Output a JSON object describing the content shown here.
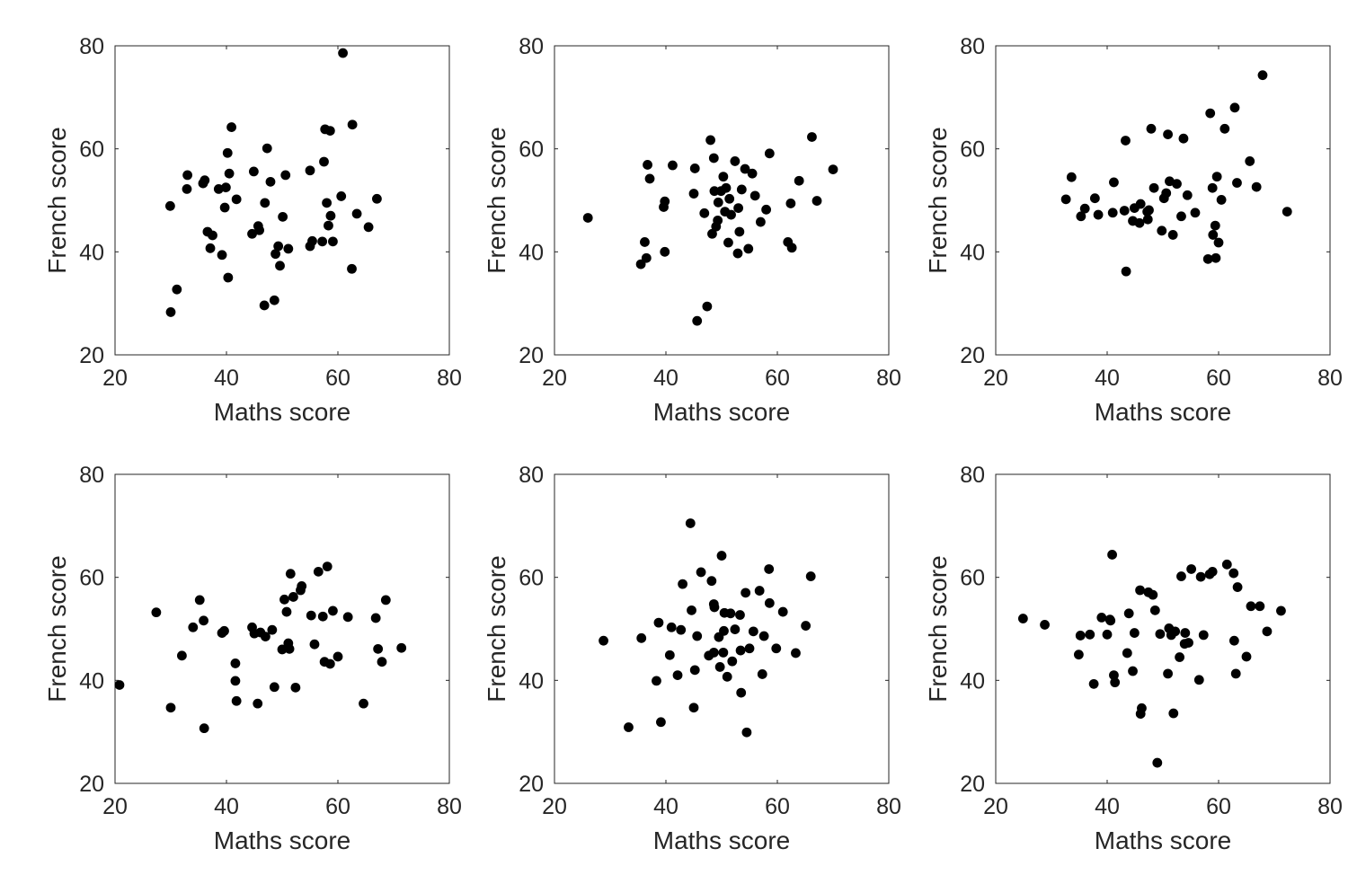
{
  "chart_data": [
    {
      "type": "scatter",
      "xlabel": "Maths score",
      "ylabel": "French score",
      "xlim": [
        20,
        80
      ],
      "ylim": [
        20,
        80
      ],
      "xticks": [
        20,
        40,
        60,
        80
      ],
      "yticks": [
        20,
        40,
        60,
        80
      ],
      "x": [
        29.9,
        30.0,
        31.1,
        32.9,
        33.0,
        35.8,
        36.1,
        36.6,
        37.1,
        37.5,
        38.6,
        39.2,
        39.7,
        39.9,
        40.2,
        40.3,
        40.5,
        40.9,
        41.8,
        44.6,
        44.9,
        45.7,
        45.9,
        46.8,
        46.9,
        47.3,
        47.9,
        48.6,
        48.8,
        49.3,
        49.6,
        50.1,
        50.6,
        51.1,
        55.0,
        55.0,
        55.4,
        57.2,
        57.5,
        57.7,
        58.0,
        58.3,
        58.6,
        58.7,
        59.1,
        60.6,
        60.9,
        62.5,
        62.6,
        63.4,
        65.5,
        67.0
      ],
      "y": [
        48.9,
        28.3,
        32.7,
        52.2,
        54.9,
        53.3,
        53.9,
        43.9,
        40.7,
        43.2,
        52.2,
        39.4,
        48.6,
        52.5,
        59.2,
        35.0,
        55.2,
        64.2,
        50.2,
        43.5,
        55.6,
        45.0,
        44.2,
        29.6,
        49.5,
        60.1,
        53.6,
        30.6,
        39.6,
        41.1,
        37.3,
        46.8,
        54.9,
        40.6,
        41.1,
        55.8,
        42.1,
        42.0,
        57.5,
        63.8,
        49.5,
        45.1,
        63.5,
        47.0,
        42.0,
        50.8,
        78.6,
        36.7,
        64.7,
        47.4,
        44.8,
        50.3
      ]
    },
    {
      "type": "scatter",
      "xlabel": "Maths score",
      "ylabel": "French score",
      "xlim": [
        20,
        80
      ],
      "ylim": [
        20,
        80
      ],
      "xticks": [
        20,
        40,
        60,
        80
      ],
      "yticks": [
        20,
        40,
        60,
        80
      ],
      "x": [
        26.0,
        35.5,
        36.2,
        36.5,
        36.7,
        37.1,
        39.6,
        39.8,
        39.8,
        41.2,
        45.0,
        45.2,
        45.6,
        46.9,
        47.4,
        48.0,
        48.3,
        48.6,
        48.7,
        49.0,
        49.3,
        49.4,
        49.9,
        50.3,
        50.6,
        51.2,
        51.7,
        52.4,
        52.9,
        53.0,
        53.2,
        53.6,
        54.2,
        54.8,
        55.5,
        56.0,
        57.0,
        58.0,
        58.6,
        61.9,
        62.4,
        62.6,
        63.9,
        66.2,
        67.1,
        70.0,
        50.8,
        51.4
      ],
      "y": [
        46.6,
        37.6,
        41.9,
        38.8,
        56.9,
        54.2,
        48.7,
        49.8,
        40.0,
        56.8,
        51.3,
        56.2,
        26.6,
        47.5,
        29.4,
        61.7,
        43.5,
        58.2,
        51.8,
        44.9,
        46.1,
        49.6,
        51.8,
        54.6,
        47.8,
        41.8,
        47.2,
        57.6,
        39.7,
        48.5,
        43.9,
        52.1,
        56.1,
        40.6,
        55.2,
        50.9,
        45.8,
        48.2,
        59.1,
        41.9,
        49.4,
        40.8,
        53.8,
        62.3,
        49.9,
        56.0,
        52.4,
        50.3
      ]
    },
    {
      "type": "scatter",
      "xlabel": "Maths score",
      "ylabel": "French score",
      "xlim": [
        20,
        80
      ],
      "ylim": [
        20,
        80
      ],
      "xticks": [
        20,
        40,
        60,
        80
      ],
      "yticks": [
        20,
        40,
        60,
        80
      ],
      "x": [
        32.6,
        33.6,
        35.3,
        36.0,
        37.8,
        38.4,
        41.0,
        41.2,
        43.1,
        43.3,
        43.4,
        44.6,
        44.9,
        45.8,
        46.0,
        47.2,
        47.3,
        47.5,
        47.9,
        48.4,
        49.8,
        50.2,
        50.6,
        50.9,
        51.2,
        51.8,
        52.5,
        53.3,
        53.7,
        54.4,
        55.8,
        58.1,
        58.5,
        58.9,
        59.0,
        59.4,
        59.5,
        59.7,
        60.0,
        60.5,
        61.1,
        62.9,
        63.3,
        65.6,
        66.8,
        67.9,
        72.3
      ],
      "y": [
        50.2,
        54.5,
        46.9,
        48.4,
        50.4,
        47.2,
        47.6,
        53.5,
        48.0,
        61.6,
        36.2,
        46.0,
        48.5,
        45.6,
        49.3,
        47.8,
        46.3,
        48.1,
        63.9,
        52.4,
        44.1,
        50.4,
        51.4,
        62.8,
        53.7,
        43.3,
        53.2,
        46.9,
        62.0,
        51.0,
        47.6,
        38.6,
        66.9,
        52.4,
        43.3,
        45.1,
        38.8,
        54.6,
        41.8,
        50.1,
        63.9,
        68.0,
        53.4,
        57.6,
        52.6,
        74.3,
        47.8
      ]
    },
    {
      "type": "scatter",
      "xlabel": "Maths score",
      "ylabel": "French score",
      "xlim": [
        20,
        80
      ],
      "ylim": [
        20,
        80
      ],
      "xticks": [
        20,
        40,
        60,
        80
      ],
      "yticks": [
        20,
        40,
        60,
        80
      ],
      "x": [
        20.8,
        27.4,
        30.0,
        32.0,
        34.0,
        35.2,
        35.9,
        36.0,
        39.2,
        39.6,
        41.6,
        41.6,
        41.8,
        44.6,
        45.0,
        45.6,
        46.1,
        47.0,
        48.2,
        48.6,
        50.0,
        50.4,
        50.8,
        51.1,
        51.3,
        51.5,
        52.0,
        52.4,
        53.3,
        53.5,
        55.2,
        55.8,
        56.5,
        57.3,
        57.6,
        58.1,
        58.6,
        59.1,
        60.0,
        61.8,
        64.6,
        66.8,
        67.2,
        67.9,
        68.6,
        71.4
      ],
      "y": [
        39.1,
        53.2,
        34.7,
        44.8,
        50.3,
        55.6,
        51.6,
        30.7,
        49.2,
        49.6,
        43.3,
        39.9,
        36.0,
        50.3,
        49.1,
        35.5,
        49.3,
        48.5,
        49.8,
        38.7,
        46.0,
        55.7,
        53.3,
        47.2,
        46.1,
        60.7,
        56.2,
        38.6,
        57.5,
        58.3,
        52.6,
        47.0,
        61.1,
        52.4,
        43.6,
        62.1,
        43.2,
        53.5,
        44.6,
        52.3,
        35.5,
        52.1,
        46.1,
        43.6,
        55.6,
        46.3
      ]
    },
    {
      "type": "scatter",
      "xlabel": "Maths score",
      "ylabel": "French score",
      "xlim": [
        20,
        80
      ],
      "ylim": [
        20,
        80
      ],
      "xticks": [
        20,
        40,
        60,
        80
      ],
      "yticks": [
        20,
        40,
        60,
        80
      ],
      "x": [
        28.8,
        33.3,
        35.6,
        38.3,
        38.7,
        39.1,
        40.7,
        41.0,
        42.1,
        42.7,
        43.0,
        44.4,
        44.6,
        45.0,
        45.2,
        45.6,
        46.3,
        47.7,
        48.2,
        48.6,
        48.6,
        48.7,
        49.5,
        49.7,
        50.0,
        50.3,
        50.4,
        50.5,
        51.0,
        51.6,
        51.9,
        52.4,
        53.3,
        53.4,
        53.5,
        54.3,
        54.5,
        55.0,
        55.7,
        56.8,
        57.3,
        57.6,
        58.5,
        58.6,
        59.8,
        61.0,
        63.3,
        65.1,
        66.0
      ],
      "y": [
        47.7,
        30.9,
        48.2,
        39.9,
        51.2,
        31.9,
        44.9,
        50.3,
        41.0,
        49.8,
        58.7,
        70.5,
        53.6,
        34.7,
        42.0,
        48.6,
        61.0,
        44.8,
        59.3,
        45.4,
        54.8,
        54.2,
        48.4,
        42.6,
        64.2,
        45.4,
        49.6,
        53.1,
        40.7,
        53.0,
        43.7,
        49.9,
        52.7,
        45.8,
        37.6,
        57.0,
        29.9,
        46.2,
        49.5,
        57.4,
        41.2,
        48.6,
        61.6,
        55.0,
        46.2,
        53.3,
        45.3,
        50.6,
        60.2
      ]
    },
    {
      "type": "scatter",
      "xlabel": "Maths score",
      "ylabel": "French score",
      "xlim": [
        20,
        80
      ],
      "ylim": [
        20,
        80
      ],
      "xticks": [
        20,
        40,
        60,
        80
      ],
      "yticks": [
        20,
        40,
        60,
        80
      ],
      "x": [
        24.9,
        28.8,
        34.9,
        35.2,
        36.9,
        37.6,
        39.0,
        40.0,
        40.5,
        40.6,
        40.9,
        41.2,
        41.4,
        43.6,
        43.9,
        44.6,
        44.9,
        45.9,
        46.0,
        46.2,
        47.4,
        48.2,
        48.6,
        49.0,
        50.9,
        51.1,
        51.5,
        51.9,
        52.2,
        53.0,
        53.3,
        53.9,
        54.0,
        54.6,
        55.1,
        56.5,
        56.8,
        57.3,
        58.4,
        58.9,
        61.5,
        62.7,
        62.8,
        63.1,
        63.4,
        65.0,
        65.8,
        67.4,
        68.7,
        71.2,
        49.5
      ],
      "y": [
        52.0,
        50.8,
        45.0,
        48.7,
        48.9,
        39.3,
        52.2,
        48.9,
        51.8,
        51.6,
        64.4,
        41.0,
        39.6,
        45.3,
        53.0,
        41.8,
        49.2,
        57.5,
        33.5,
        34.6,
        57.1,
        56.6,
        53.6,
        24.0,
        41.3,
        50.1,
        48.8,
        33.6,
        49.5,
        44.5,
        60.2,
        47.1,
        49.2,
        47.3,
        61.6,
        40.1,
        60.1,
        48.8,
        60.6,
        61.1,
        62.5,
        60.8,
        47.7,
        41.3,
        58.1,
        44.6,
        54.4,
        54.4,
        49.5,
        53.5,
        49.0
      ]
    }
  ]
}
